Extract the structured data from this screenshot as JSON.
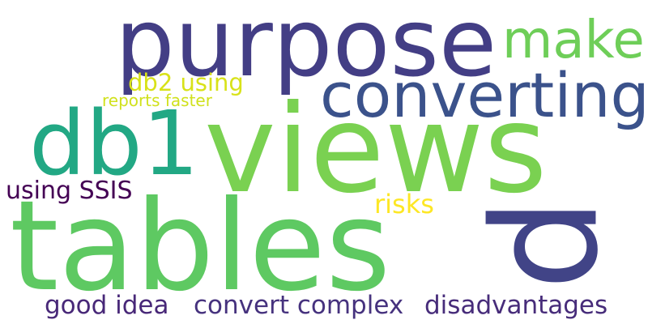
{
  "words": [
    {
      "text": "purpose",
      "color": "#433e85"
    },
    {
      "text": "views",
      "color": "#7ad151"
    },
    {
      "text": "tables",
      "color": "#5ec962"
    },
    {
      "text": "db1",
      "color": "#22a884"
    },
    {
      "text": "converting",
      "color": "#3b528b"
    },
    {
      "text": "make",
      "color": "#6ece58"
    },
    {
      "text": "p",
      "color": "#414487"
    },
    {
      "text": "db2 using",
      "color": "#d8e219"
    },
    {
      "text": "reports faster",
      "color": "#d0e11c"
    },
    {
      "text": "using SSIS",
      "color": "#440154"
    },
    {
      "text": "risks",
      "color": "#fde725"
    },
    {
      "text": "good idea",
      "color": "#482878"
    },
    {
      "text": "convert complex",
      "color": "#46327e"
    },
    {
      "text": "disadvantages",
      "color": "#472c7a"
    }
  ]
}
